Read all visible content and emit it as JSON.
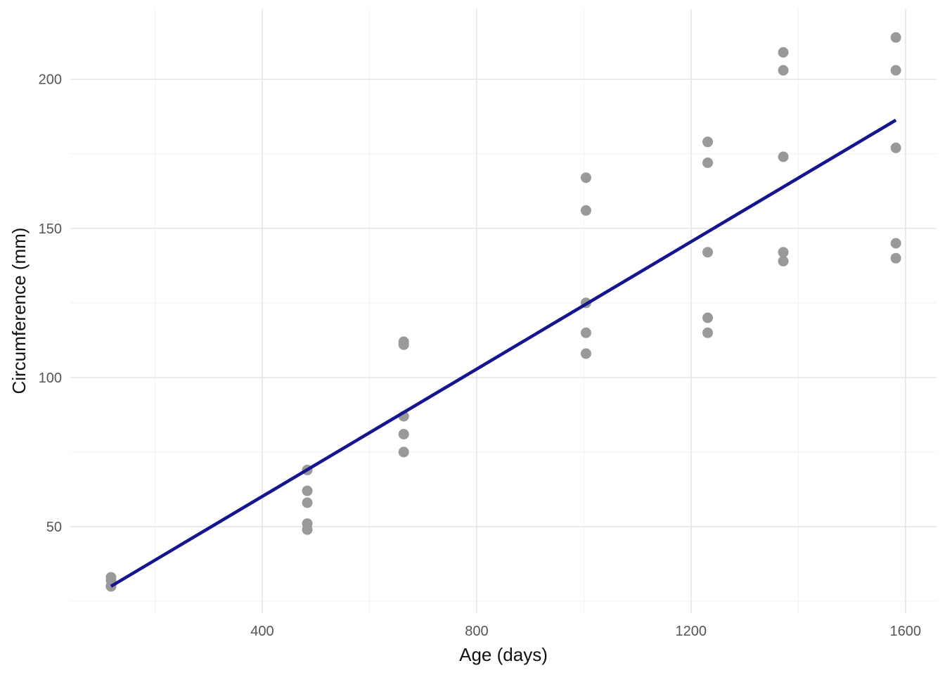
{
  "chart_data": {
    "type": "scatter",
    "xlabel": "Age (days)",
    "ylabel": "Circumference (mm)",
    "x_ticks": [
      400,
      800,
      1200,
      1600
    ],
    "y_ticks": [
      50,
      100,
      150,
      200
    ],
    "x_minor_ticks": [
      200,
      600,
      1000,
      1400
    ],
    "y_minor_ticks": [
      25,
      75,
      125,
      175
    ],
    "xlim": [
      42,
      1658
    ],
    "ylim": [
      21,
      223.5
    ],
    "grid": "on",
    "legend": "none",
    "points": [
      [
        118,
        30
      ],
      [
        118,
        30
      ],
      [
        118,
        30
      ],
      [
        118,
        32
      ],
      [
        118,
        33
      ],
      [
        484,
        49
      ],
      [
        484,
        51
      ],
      [
        484,
        58
      ],
      [
        484,
        62
      ],
      [
        484,
        69
      ],
      [
        664,
        75
      ],
      [
        664,
        81
      ],
      [
        664,
        87
      ],
      [
        664,
        111
      ],
      [
        664,
        112
      ],
      [
        1004,
        108
      ],
      [
        1004,
        115
      ],
      [
        1004,
        125
      ],
      [
        1004,
        156
      ],
      [
        1004,
        167
      ],
      [
        1231,
        115
      ],
      [
        1231,
        120
      ],
      [
        1231,
        142
      ],
      [
        1231,
        172
      ],
      [
        1231,
        179
      ],
      [
        1372,
        139
      ],
      [
        1372,
        142
      ],
      [
        1372,
        174
      ],
      [
        1372,
        203
      ],
      [
        1372,
        209
      ],
      [
        1582,
        140
      ],
      [
        1582,
        145
      ],
      [
        1582,
        177
      ],
      [
        1582,
        203
      ],
      [
        1582,
        214
      ]
    ],
    "regression_line": {
      "x1": 118,
      "y1": 30.0,
      "x2": 1582,
      "y2": 186.3
    },
    "colors": {
      "point": "#999999",
      "line": "#15158f",
      "grid_major": "#e4e4e4",
      "grid_minor": "#f0f0f0",
      "tick_label": "#555555",
      "axis_title": "#111111",
      "background": "#ffffff"
    }
  }
}
